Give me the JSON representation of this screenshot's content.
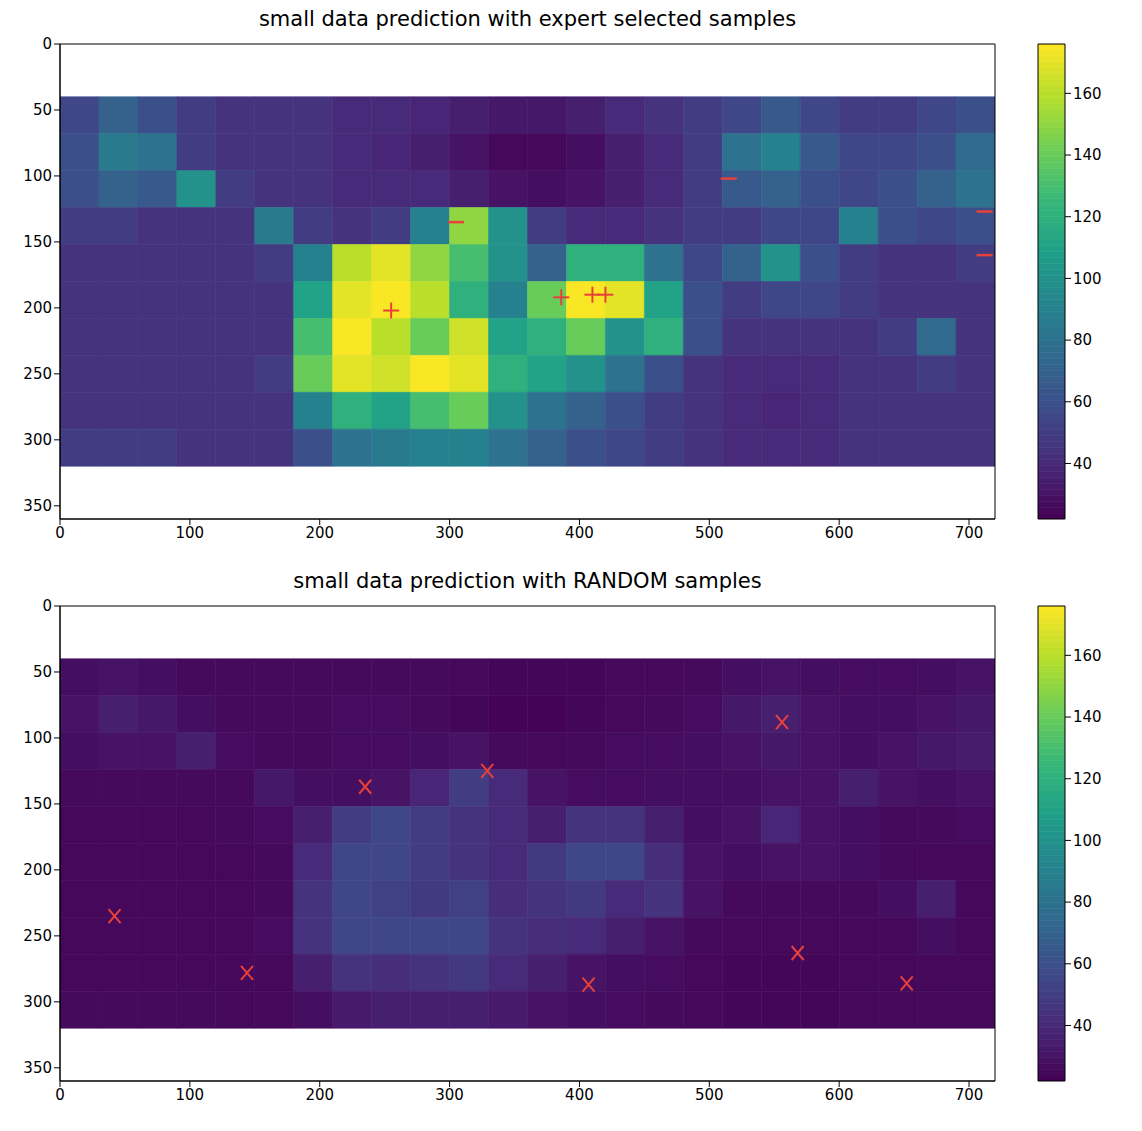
{
  "chart_data": [
    {
      "type": "heatmap",
      "title": "small data prediction with expert selected samples",
      "xlim": [
        0,
        720
      ],
      "ylim": [
        0,
        360
      ],
      "xticks": [
        0,
        100,
        200,
        300,
        400,
        500,
        600,
        700
      ],
      "yticks": [
        0,
        50,
        100,
        150,
        200,
        250,
        300,
        350
      ],
      "cells_x": [
        0,
        30,
        60,
        90,
        120,
        150,
        180,
        210,
        240,
        270,
        300,
        330,
        360,
        390,
        420,
        450,
        480,
        510,
        540,
        570,
        600,
        630,
        660,
        690,
        720
      ],
      "cells_y": [
        40,
        68,
        96,
        124,
        152,
        180,
        208,
        236,
        264,
        292,
        320
      ],
      "cells": [
        [
          55,
          70,
          60,
          50,
          45,
          45,
          45,
          40,
          40,
          38,
          35,
          32,
          32,
          35,
          40,
          45,
          50,
          55,
          65,
          55,
          50,
          50,
          55,
          60
        ],
        [
          60,
          85,
          80,
          50,
          45,
          45,
          45,
          40,
          38,
          35,
          30,
          25,
          25,
          28,
          35,
          40,
          50,
          80,
          90,
          65,
          55,
          55,
          60,
          75
        ],
        [
          60,
          70,
          65,
          100,
          50,
          45,
          45,
          40,
          40,
          40,
          35,
          30,
          28,
          30,
          35,
          40,
          50,
          65,
          70,
          60,
          55,
          60,
          70,
          80
        ],
        [
          50,
          50,
          45,
          45,
          45,
          85,
          50,
          45,
          50,
          90,
          150,
          100,
          50,
          40,
          40,
          45,
          50,
          50,
          55,
          55,
          90,
          60,
          55,
          60
        ],
        [
          45,
          45,
          45,
          45,
          45,
          50,
          90,
          160,
          170,
          150,
          130,
          100,
          70,
          120,
          120,
          80,
          55,
          70,
          100,
          60,
          50,
          45,
          45,
          50
        ],
        [
          45,
          45,
          45,
          45,
          45,
          45,
          110,
          170,
          175,
          160,
          120,
          90,
          140,
          175,
          170,
          110,
          60,
          50,
          55,
          55,
          50,
          45,
          45,
          45
        ],
        [
          45,
          45,
          45,
          45,
          45,
          45,
          130,
          175,
          160,
          140,
          165,
          110,
          120,
          140,
          100,
          120,
          60,
          45,
          45,
          45,
          45,
          50,
          75,
          45
        ],
        [
          45,
          45,
          45,
          45,
          45,
          50,
          140,
          170,
          165,
          175,
          170,
          120,
          110,
          100,
          80,
          60,
          45,
          40,
          40,
          40,
          45,
          45,
          50,
          45
        ],
        [
          45,
          45,
          45,
          45,
          45,
          45,
          90,
          120,
          110,
          130,
          140,
          100,
          80,
          70,
          60,
          50,
          45,
          40,
          38,
          40,
          45,
          45,
          45,
          45
        ],
        [
          50,
          50,
          50,
          45,
          45,
          45,
          60,
          80,
          85,
          90,
          90,
          80,
          70,
          60,
          55,
          50,
          45,
          40,
          40,
          40,
          45,
          45,
          45,
          45
        ]
      ],
      "colorbar": {
        "range": [
          22,
          176
        ],
        "ticks": [
          40,
          60,
          80,
          100,
          120,
          140,
          160
        ]
      },
      "series": [
        {
          "marker": "plus",
          "color": "#e8413a",
          "x": [
            255,
            386,
            410,
            420
          ],
          "y": [
            202,
            192,
            190,
            190
          ]
        },
        {
          "marker": "minus",
          "color": "#e8413a",
          "x": [
            305,
            515,
            712,
            712
          ],
          "y": [
            135,
            102,
            127,
            160
          ]
        }
      ]
    },
    {
      "type": "heatmap",
      "title": "small data prediction with RANDOM samples",
      "xlim": [
        0,
        720
      ],
      "ylim": [
        0,
        360
      ],
      "xticks": [
        0,
        100,
        200,
        300,
        400,
        500,
        600,
        700
      ],
      "yticks": [
        0,
        50,
        100,
        150,
        200,
        250,
        300,
        350
      ],
      "cells_x": [
        0,
        30,
        60,
        90,
        120,
        150,
        180,
        210,
        240,
        270,
        300,
        330,
        360,
        390,
        420,
        450,
        480,
        510,
        540,
        570,
        600,
        630,
        660,
        690,
        720
      ],
      "cells_y": [
        40,
        68,
        96,
        124,
        152,
        180,
        208,
        236,
        264,
        292,
        320
      ],
      "cells": [
        [
          28,
          30,
          28,
          26,
          26,
          26,
          26,
          26,
          26,
          26,
          25,
          24,
          24,
          24,
          25,
          25,
          26,
          28,
          30,
          28,
          27,
          27,
          28,
          30
        ],
        [
          30,
          35,
          32,
          28,
          26,
          26,
          26,
          27,
          27,
          26,
          24,
          23,
          23,
          24,
          25,
          26,
          27,
          32,
          35,
          30,
          28,
          28,
          30,
          32
        ],
        [
          28,
          30,
          30,
          35,
          27,
          26,
          26,
          27,
          27,
          28,
          30,
          26,
          25,
          26,
          27,
          27,
          28,
          30,
          32,
          30,
          28,
          30,
          32,
          34
        ],
        [
          26,
          26,
          26,
          26,
          26,
          32,
          28,
          28,
          30,
          38,
          50,
          40,
          30,
          27,
          27,
          28,
          28,
          28,
          30,
          30,
          35,
          30,
          28,
          30
        ],
        [
          25,
          25,
          25,
          25,
          26,
          27,
          35,
          50,
          55,
          50,
          45,
          40,
          35,
          45,
          45,
          35,
          28,
          30,
          38,
          30,
          28,
          26,
          26,
          27
        ],
        [
          25,
          25,
          25,
          25,
          25,
          26,
          40,
          55,
          55,
          50,
          45,
          40,
          48,
          55,
          55,
          42,
          30,
          28,
          30,
          30,
          28,
          26,
          25,
          25
        ],
        [
          25,
          25,
          25,
          25,
          25,
          26,
          45,
          55,
          52,
          48,
          52,
          42,
          45,
          48,
          40,
          45,
          30,
          26,
          26,
          26,
          26,
          28,
          35,
          25
        ],
        [
          25,
          25,
          25,
          25,
          25,
          27,
          45,
          55,
          55,
          55,
          55,
          45,
          42,
          40,
          35,
          30,
          26,
          25,
          25,
          25,
          25,
          25,
          28,
          25
        ],
        [
          25,
          25,
          25,
          25,
          25,
          25,
          35,
          45,
          42,
          45,
          48,
          40,
          35,
          30,
          28,
          27,
          25,
          24,
          24,
          24,
          25,
          25,
          25,
          25
        ],
        [
          26,
          26,
          26,
          26,
          25,
          25,
          28,
          33,
          35,
          35,
          35,
          33,
          30,
          28,
          27,
          26,
          25,
          24,
          24,
          24,
          25,
          25,
          25,
          25
        ]
      ],
      "colorbar": {
        "range": [
          22,
          176
        ],
        "ticks": [
          40,
          60,
          80,
          100,
          120,
          140,
          160
        ]
      },
      "series": [
        {
          "marker": "x",
          "color": "#e8413a",
          "x": [
            42,
            144,
            235,
            329,
            407,
            556,
            568,
            652
          ],
          "y": [
            235,
            278,
            137,
            125,
            287,
            88,
            263,
            286
          ]
        }
      ]
    }
  ]
}
